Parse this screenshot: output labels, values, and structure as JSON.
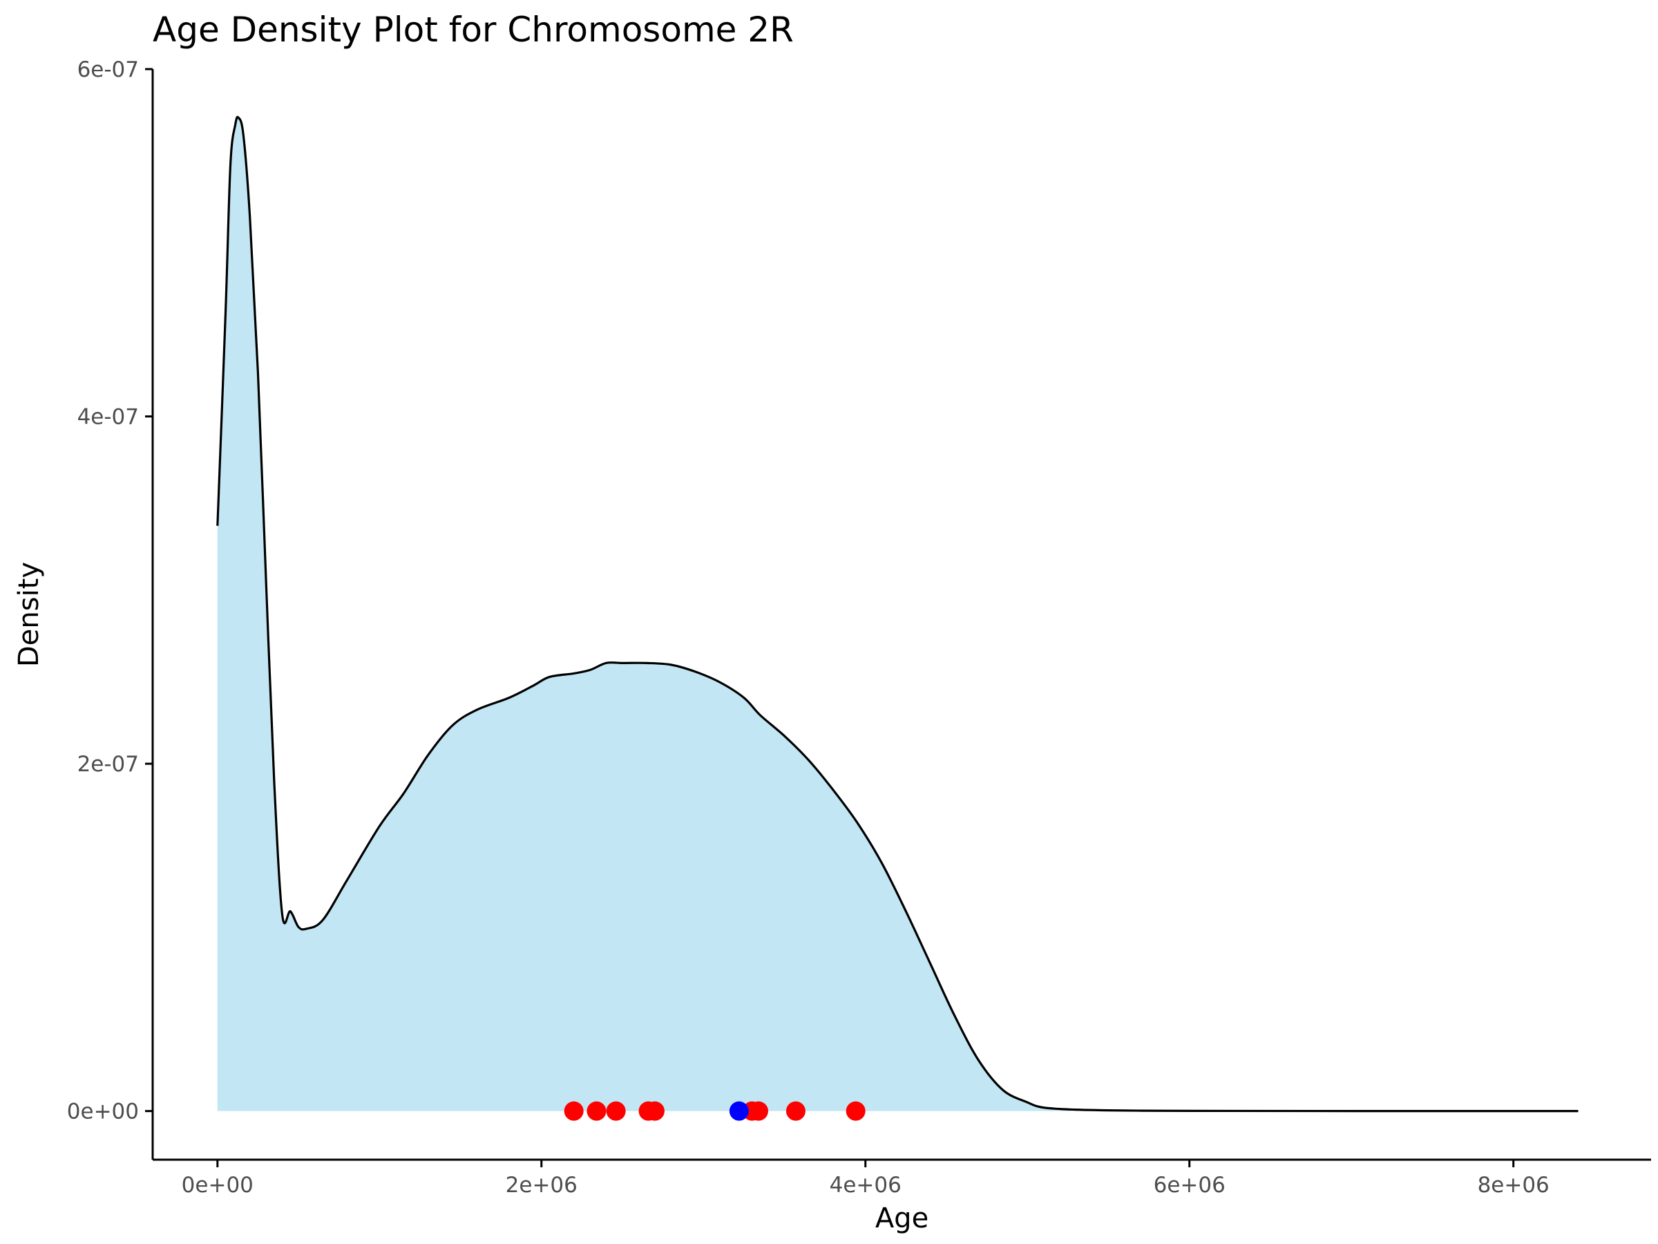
{
  "chart_data": {
    "type": "area",
    "title": "Age Density Plot for Chromosome 2R",
    "xlabel": "Age",
    "ylabel": "Density",
    "xlim": [
      -400000,
      8850000
    ],
    "ylim": [
      -2.8e-08,
      6e-07
    ],
    "x_ticks": [
      {
        "value": 0,
        "label": "0e+00"
      },
      {
        "value": 2000000,
        "label": "2e+06"
      },
      {
        "value": 4000000,
        "label": "4e+06"
      },
      {
        "value": 6000000,
        "label": "6e+06"
      },
      {
        "value": 8000000,
        "label": "8e+06"
      }
    ],
    "y_ticks": [
      {
        "value": 0,
        "label": "0e+00"
      },
      {
        "value": 2e-07,
        "label": "2e-07"
      },
      {
        "value": 4e-07,
        "label": "4e-07"
      },
      {
        "value": 6e-07,
        "label": "6e-07"
      }
    ],
    "density_curve": {
      "x": [
        0,
        50000,
        80000,
        110000,
        130000,
        160000,
        200000,
        250000,
        300000,
        350000,
        400000,
        450000,
        500000,
        550000,
        650000,
        800000,
        1000000,
        1150000,
        1300000,
        1450000,
        1600000,
        1800000,
        1950000,
        2050000,
        2200000,
        2300000,
        2400000,
        2500000,
        2650000,
        2800000,
        2950000,
        3100000,
        3250000,
        3350000,
        3500000,
        3650000,
        3800000,
        3950000,
        4100000,
        4250000,
        4400000,
        4550000,
        4700000,
        4850000,
        5000000,
        5100000,
        5300000,
        5600000,
        6000000,
        7000000,
        8400000
      ],
      "y": [
        3.37e-07,
        4.6e-07,
        5.45e-07,
        5.68e-07,
        5.72e-07,
        5.62e-07,
        5.15e-07,
        4.25e-07,
        3.05e-07,
        1.9e-07,
        1.13e-07,
        1.15e-07,
        1.06e-07,
        1.05e-07,
        1.1e-07,
        1.33e-07,
        1.64e-07,
        1.83e-07,
        2.05e-07,
        2.22e-07,
        2.31e-07,
        2.38e-07,
        2.45e-07,
        2.5e-07,
        2.52e-07,
        2.54e-07,
        2.58e-07,
        2.58e-07,
        2.58e-07,
        2.57e-07,
        2.53e-07,
        2.47e-07,
        2.38e-07,
        2.28e-07,
        2.16e-07,
        2.02e-07,
        1.85e-07,
        1.66e-07,
        1.43e-07,
        1.15e-07,
        8.5e-08,
        5.5e-08,
        2.9e-08,
        1.2e-08,
        5e-09,
        2e-09,
        8e-10,
        3e-10,
        1e-10,
        1e-11,
        0
      ],
      "fill_color": "#c2e6f3",
      "line_color": "#000000"
    },
    "points": [
      {
        "x": 2200000,
        "y": 0,
        "color": "#ff0000"
      },
      {
        "x": 2340000,
        "y": 0,
        "color": "#ff0000"
      },
      {
        "x": 2460000,
        "y": 0,
        "color": "#ff0000"
      },
      {
        "x": 2660000,
        "y": 0,
        "color": "#ff0000"
      },
      {
        "x": 2700000,
        "y": 0,
        "color": "#ff0000"
      },
      {
        "x": 3300000,
        "y": 0,
        "color": "#ff0000"
      },
      {
        "x": 3340000,
        "y": 0,
        "color": "#ff0000"
      },
      {
        "x": 3570000,
        "y": 0,
        "color": "#ff0000"
      },
      {
        "x": 3940000,
        "y": 0,
        "color": "#ff0000"
      },
      {
        "x": 3220000,
        "y": 0,
        "color": "#0000ff"
      }
    ],
    "grid": false,
    "legend": "none"
  }
}
